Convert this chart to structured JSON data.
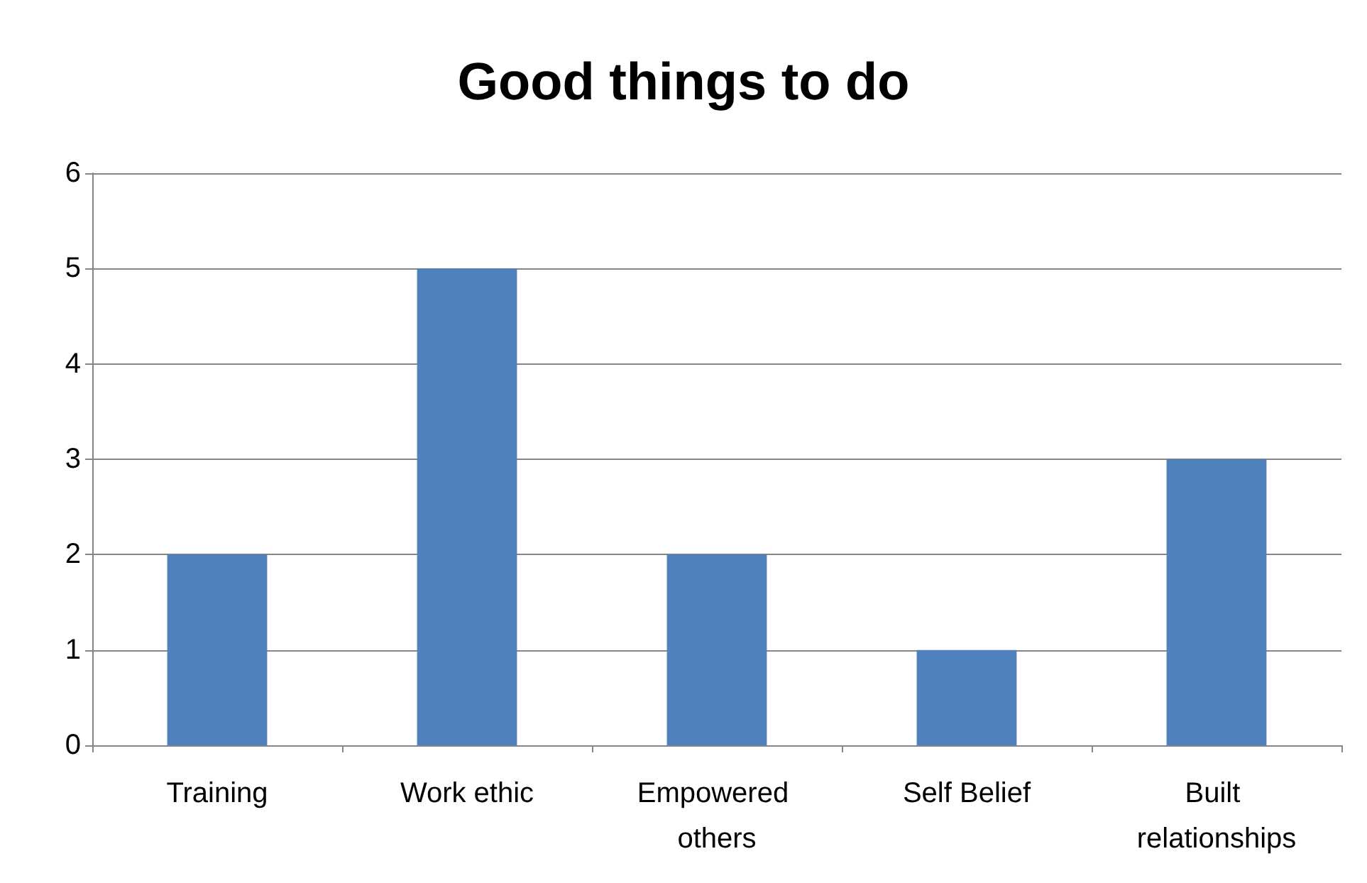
{
  "chart_data": {
    "type": "bar",
    "title": "Good things to do",
    "categories": [
      "Training",
      "Work ethic",
      "Empowered others",
      "Self Belief",
      "Built relationships"
    ],
    "values": [
      2,
      5,
      2,
      1,
      3
    ],
    "color": "#4f81bd",
    "ylim": [
      0,
      6
    ],
    "yticks": [
      0,
      1,
      2,
      3,
      4,
      5,
      6
    ],
    "grid": "y"
  }
}
